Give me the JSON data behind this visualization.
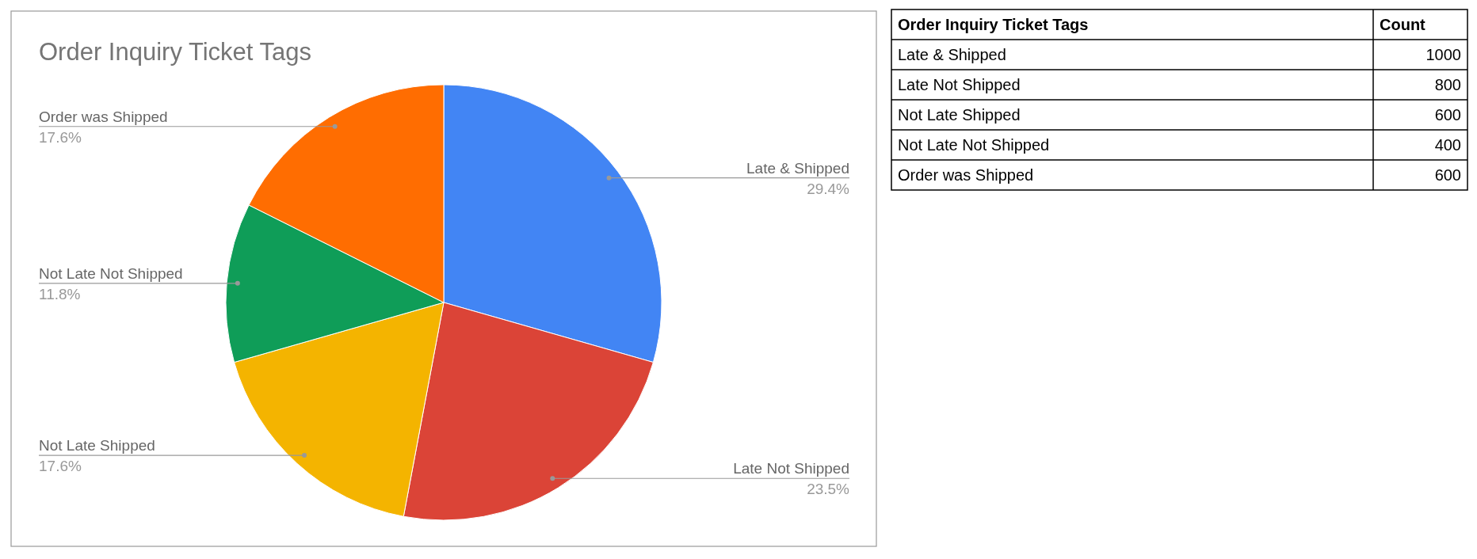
{
  "chart_data": [
    {
      "type": "pie",
      "title": "Order Inquiry Ticket Tags",
      "categories": [
        "Late & Shipped",
        "Late Not Shipped",
        "Not Late Shipped",
        "Not Late Not Shipped",
        "Order was Shipped"
      ],
      "values": [
        29.4,
        23.5,
        17.6,
        11.8,
        17.6
      ],
      "colors": [
        "#4285f4",
        "#db4437",
        "#f4b400",
        "#0f9d58",
        "#ff6d01"
      ],
      "value_labels": [
        "29.4%",
        "23.5%",
        "17.6%",
        "11.8%",
        "17.6%"
      ]
    },
    {
      "type": "other",
      "categories": [
        "Late & Shipped",
        "Late Not Shipped",
        "Not Late Shipped",
        "Not Late Not Shipped",
        "Order was Shipped"
      ],
      "values": [
        1000,
        800,
        600,
        400,
        600
      ],
      "data_labels": true,
      "annotations": [
        "Order Inquiry Ticket Tags",
        "Count"
      ]
    }
  ]
}
